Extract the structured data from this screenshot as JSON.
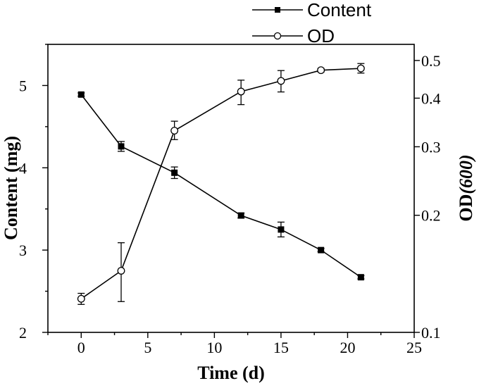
{
  "chart_data": {
    "type": "line",
    "xlabel": "Time (d)",
    "ylabel": "Content (mg)",
    "y2label_prefix": "OD",
    "y2label_suffix": "(600)",
    "xlim": [
      -2.5,
      25
    ],
    "xticks": [
      0,
      5,
      10,
      15,
      20,
      25
    ],
    "ylim": [
      2,
      5.5
    ],
    "yticks": [
      2,
      3,
      4,
      5
    ],
    "y2scale": "log",
    "y2lim": [
      0.1,
      0.55
    ],
    "y2ticks": [
      0.1,
      0.2,
      0.3,
      0.4,
      0.5
    ],
    "y2ticklabels": [
      "0.1",
      "0.2",
      "0.3",
      "0.4",
      "0.5"
    ],
    "legend_position": "top-right",
    "series": [
      {
        "name": "Content",
        "axis": "left",
        "marker": "filled-square",
        "x": [
          0,
          3,
          7,
          12,
          15,
          18,
          21
        ],
        "values": [
          4.89,
          4.26,
          3.94,
          3.42,
          3.25,
          3.0,
          2.67
        ],
        "errors": [
          0.02,
          0.06,
          0.07,
          0.03,
          0.09,
          0.02,
          0.02
        ]
      },
      {
        "name": "OD",
        "axis": "right",
        "marker": "open-circle",
        "x": [
          0,
          3,
          7,
          12,
          15,
          18,
          21
        ],
        "values": [
          0.122,
          0.144,
          0.33,
          0.416,
          0.443,
          0.472,
          0.477
        ],
        "error_low": [
          0.118,
          0.12,
          0.313,
          0.385,
          0.415,
          0.467,
          0.464
        ],
        "error_high": [
          0.126,
          0.17,
          0.349,
          0.445,
          0.471,
          0.477,
          0.491
        ]
      }
    ]
  }
}
